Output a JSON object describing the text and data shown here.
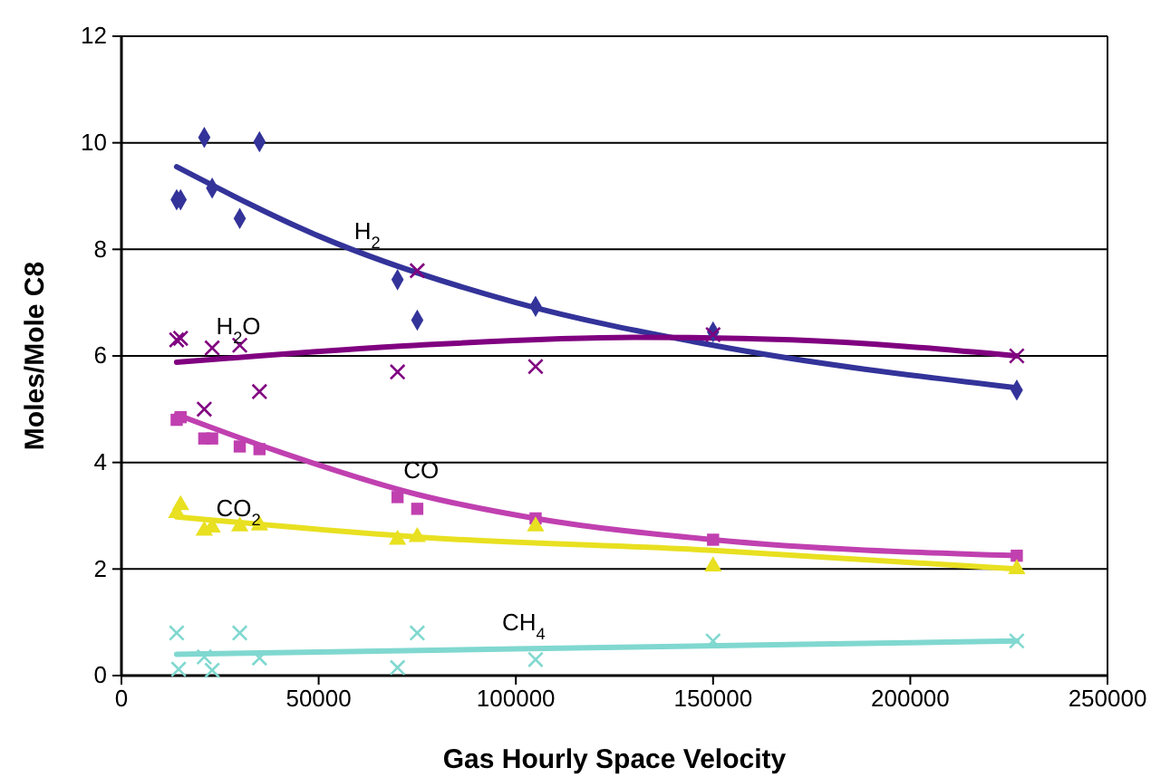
{
  "chart_data": {
    "type": "scatter",
    "xlabel": "Gas Hourly Space Velocity",
    "ylabel": "Moles/Mole C8",
    "xlim": [
      0,
      250000
    ],
    "xticks": [
      0,
      50000,
      100000,
      150000,
      200000,
      250000
    ],
    "ylim": [
      0,
      12
    ],
    "yticks": [
      0,
      2,
      4,
      6,
      8,
      10,
      12
    ],
    "grid": "y",
    "legend": false,
    "series": [
      {
        "name": "H$_{2}$",
        "type": "scatter",
        "marker": "diamond",
        "color": "#33339a",
        "x": [
          14000,
          15000,
          21000,
          23000,
          30000,
          35000,
          70000,
          75000,
          105000,
          150000,
          227000
        ],
        "values": [
          8.93,
          8.93,
          10.1,
          9.15,
          8.58,
          10.02,
          7.43,
          6.67,
          6.93,
          6.45,
          5.36
        ]
      },
      {
        "name": "H$_{2}$O",
        "type": "scatter",
        "marker": "cross",
        "color": "#800080",
        "x": [
          14000,
          15000,
          21000,
          23000,
          30000,
          35000,
          70000,
          75000,
          105000,
          150000,
          227000
        ],
        "values": [
          6.3,
          6.33,
          5.0,
          6.15,
          6.2,
          5.33,
          5.7,
          7.6,
          5.8,
          6.4,
          6.0
        ]
      },
      {
        "name": "CO",
        "type": "scatter",
        "marker": "square",
        "color": "#c040b0",
        "x": [
          14000,
          15000,
          21000,
          23000,
          30000,
          35000,
          70000,
          75000,
          105000,
          150000,
          227000
        ],
        "values": [
          4.8,
          4.85,
          4.45,
          4.45,
          4.3,
          4.25,
          3.35,
          3.13,
          2.95,
          2.55,
          2.25
        ]
      },
      {
        "name": "CO$_{2}$",
        "type": "scatter",
        "marker": "triangle",
        "color": "#e8e020",
        "x": [
          14000,
          15000,
          21000,
          23000,
          30000,
          35000,
          70000,
          75000,
          105000,
          150000,
          227000
        ],
        "values": [
          3.05,
          3.2,
          2.72,
          2.78,
          2.8,
          2.82,
          2.55,
          2.6,
          2.8,
          2.05,
          2.0
        ]
      },
      {
        "name": "CH$_{4}$",
        "type": "scatter",
        "marker": "cross",
        "color": "#80d8d0",
        "x": [
          14000,
          14500,
          21000,
          23000,
          30000,
          35000,
          70000,
          75000,
          105000,
          150000,
          227000
        ],
        "values": [
          0.8,
          0.12,
          0.35,
          0.1,
          0.8,
          0.33,
          0.15,
          0.8,
          0.3,
          0.65,
          0.65
        ]
      },
      {
        "type": "line",
        "color": "#33339a",
        "x": [
          14000,
          50000,
          100000,
          150000,
          227000
        ],
        "values": [
          9.55,
          8.25,
          7.0,
          6.2,
          5.4
        ]
      },
      {
        "type": "line",
        "color": "#800080",
        "x": [
          14000,
          75000,
          130000,
          170000,
          227000
        ],
        "values": [
          5.88,
          6.2,
          6.35,
          6.3,
          6.0
        ]
      },
      {
        "type": "line",
        "color": "#c040b0",
        "x": [
          14000,
          40000,
          75000,
          105000,
          150000,
          227000
        ],
        "values": [
          4.9,
          4.2,
          3.4,
          2.95,
          2.55,
          2.25
        ]
      },
      {
        "type": "line",
        "color": "#e8e020",
        "x": [
          14000,
          75000,
          150000,
          227000
        ],
        "values": [
          2.98,
          2.6,
          2.35,
          2.0
        ]
      },
      {
        "type": "line",
        "color": "#80d8d0",
        "x": [
          14000,
          100000,
          227000
        ],
        "values": [
          0.4,
          0.5,
          0.65
        ]
      }
    ]
  }
}
